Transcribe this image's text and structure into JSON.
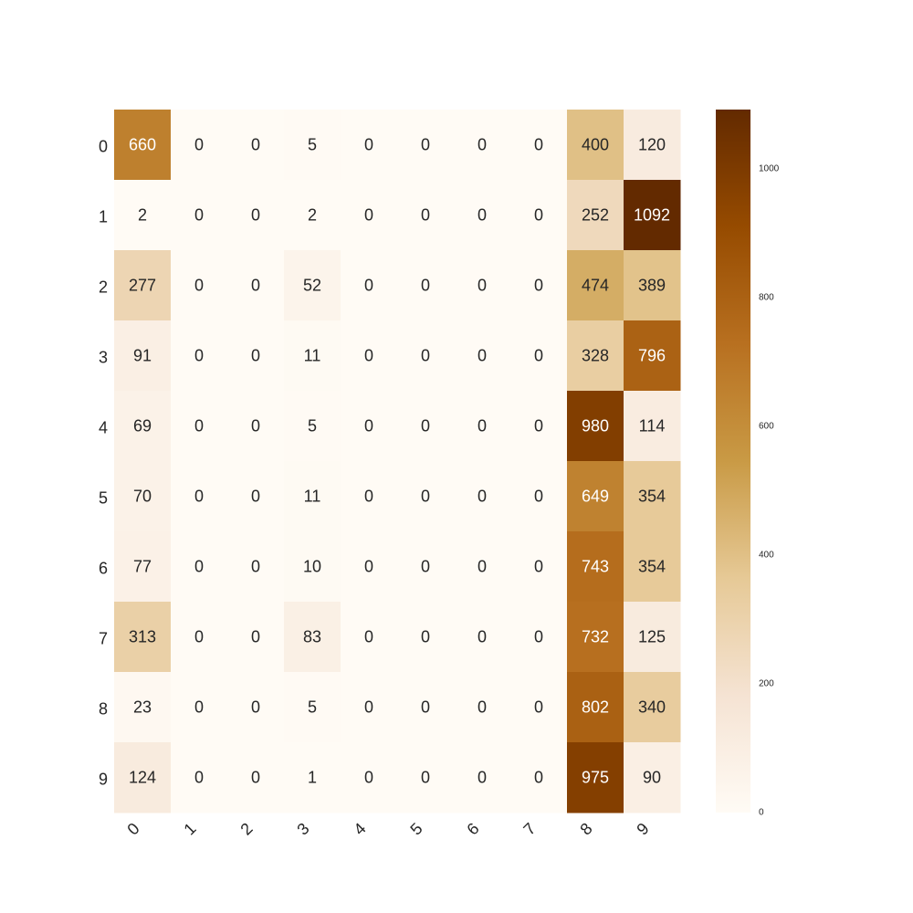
{
  "chart_data": {
    "type": "heatmap",
    "title": "",
    "xlabel": "",
    "ylabel": "",
    "x_categories": [
      "0",
      "1",
      "2",
      "3",
      "4",
      "5",
      "6",
      "7",
      "8",
      "9"
    ],
    "y_categories": [
      "0",
      "1",
      "2",
      "3",
      "4",
      "5",
      "6",
      "7",
      "8",
      "9"
    ],
    "values": [
      [
        660,
        0,
        0,
        5,
        0,
        0,
        0,
        0,
        400,
        120
      ],
      [
        2,
        0,
        0,
        2,
        0,
        0,
        0,
        0,
        252,
        1092
      ],
      [
        277,
        0,
        0,
        52,
        0,
        0,
        0,
        0,
        474,
        389
      ],
      [
        91,
        0,
        0,
        11,
        0,
        0,
        0,
        0,
        328,
        796
      ],
      [
        69,
        0,
        0,
        5,
        0,
        0,
        0,
        0,
        980,
        114
      ],
      [
        70,
        0,
        0,
        11,
        0,
        0,
        0,
        0,
        649,
        354
      ],
      [
        77,
        0,
        0,
        10,
        0,
        0,
        0,
        0,
        743,
        354
      ],
      [
        313,
        0,
        0,
        83,
        0,
        0,
        0,
        0,
        732,
        125
      ],
      [
        23,
        0,
        0,
        5,
        0,
        0,
        0,
        0,
        802,
        340
      ],
      [
        124,
        0,
        0,
        1,
        0,
        0,
        0,
        0,
        975,
        90
      ]
    ],
    "annotations": "cell values shown",
    "colorbar": {
      "range": [
        0,
        1092
      ],
      "ticks": [
        "0",
        "200",
        "400",
        "600",
        "800",
        "1000"
      ],
      "colormap": "white-to-brown",
      "colors": [
        "#fffbf5",
        "#f5e3d3",
        "#e6c996",
        "#c99a45",
        "#b87020",
        "#964b00",
        "#632a00"
      ]
    },
    "x_tick_rotation": "45",
    "grid": false,
    "legend": "colorbar-right"
  }
}
